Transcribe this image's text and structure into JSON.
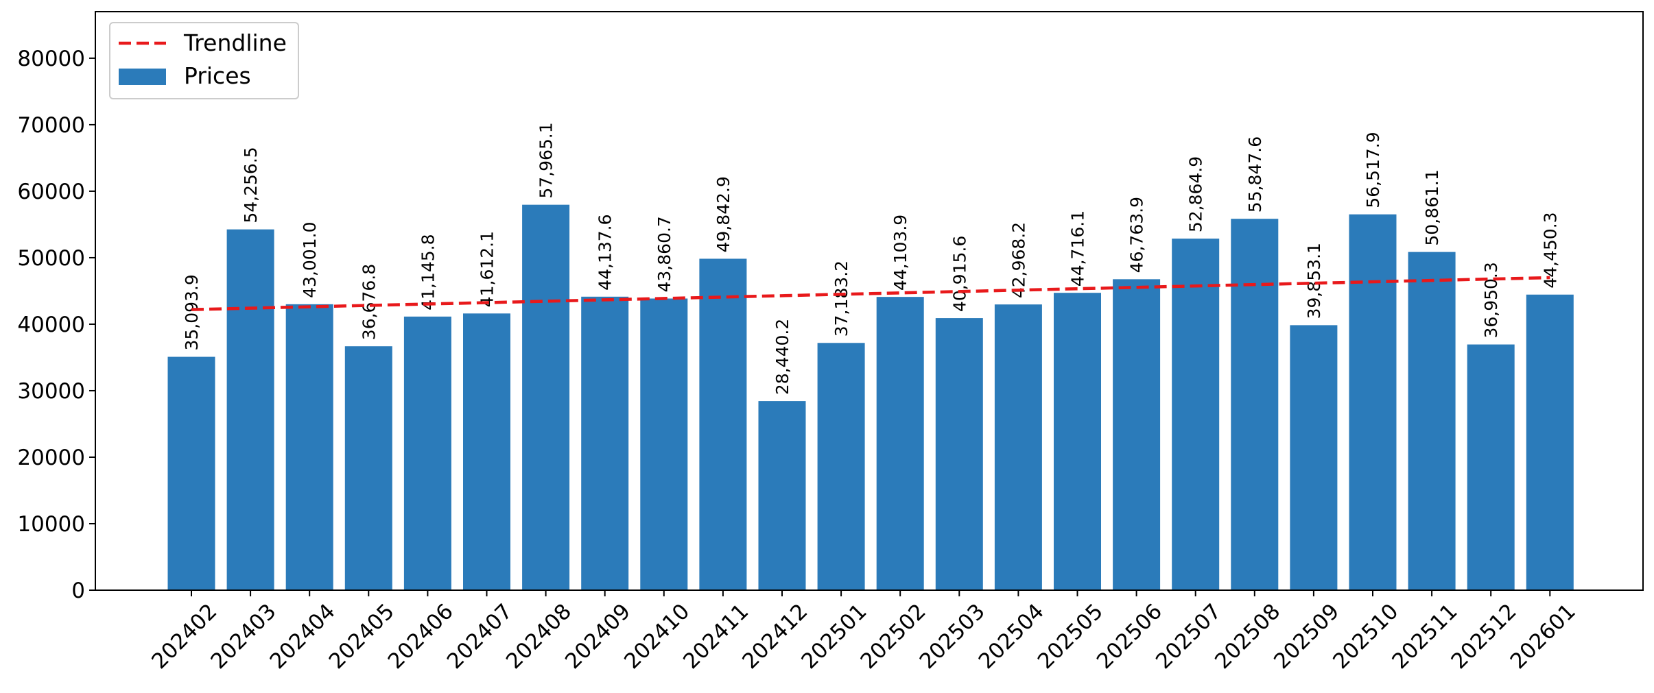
{
  "chart_data": {
    "type": "bar",
    "categories": [
      "202402",
      "202403",
      "202404",
      "202405",
      "202406",
      "202407",
      "202408",
      "202409",
      "202410",
      "202411",
      "202412",
      "202501",
      "202502",
      "202503",
      "202504",
      "202505",
      "202506",
      "202507",
      "202508",
      "202509",
      "202510",
      "202511",
      "202512",
      "202601"
    ],
    "values": [
      35093.9,
      54256.5,
      43001.0,
      36676.8,
      41145.8,
      41612.1,
      57965.1,
      44137.6,
      43860.7,
      49842.9,
      28440.2,
      37183.2,
      44103.9,
      40915.6,
      42968.2,
      44716.1,
      46763.9,
      52864.9,
      55847.6,
      39853.1,
      56517.9,
      50861.1,
      36950.3,
      44450.3
    ],
    "data_labels": [
      "35,093.9",
      "54,256.5",
      "43,001.0",
      "36,676.8",
      "41,145.8",
      "41,612.1",
      "57,965.1",
      "44,137.6",
      "43,860.7",
      "49,842.9",
      "28,440.2",
      "37,183.2",
      "44,103.9",
      "40,915.6",
      "42,968.2",
      "44,716.1",
      "46,763.9",
      "52,864.9",
      "55,847.6",
      "39,853.1",
      "56,517.9",
      "50,861.1",
      "36,950.3",
      "44,450.3"
    ],
    "series": [
      {
        "name": "Prices",
        "color": "#2b7bba"
      },
      {
        "name": "Trendline",
        "color": "#e8191b",
        "style": "dashed",
        "start": 42200,
        "end": 47000
      }
    ],
    "title": "",
    "xlabel": "",
    "ylabel": "",
    "ylim": [
      0,
      87000
    ],
    "yticks": [
      0,
      10000,
      20000,
      30000,
      40000,
      50000,
      60000,
      70000,
      80000
    ],
    "grid": false,
    "legend": "top-left"
  }
}
